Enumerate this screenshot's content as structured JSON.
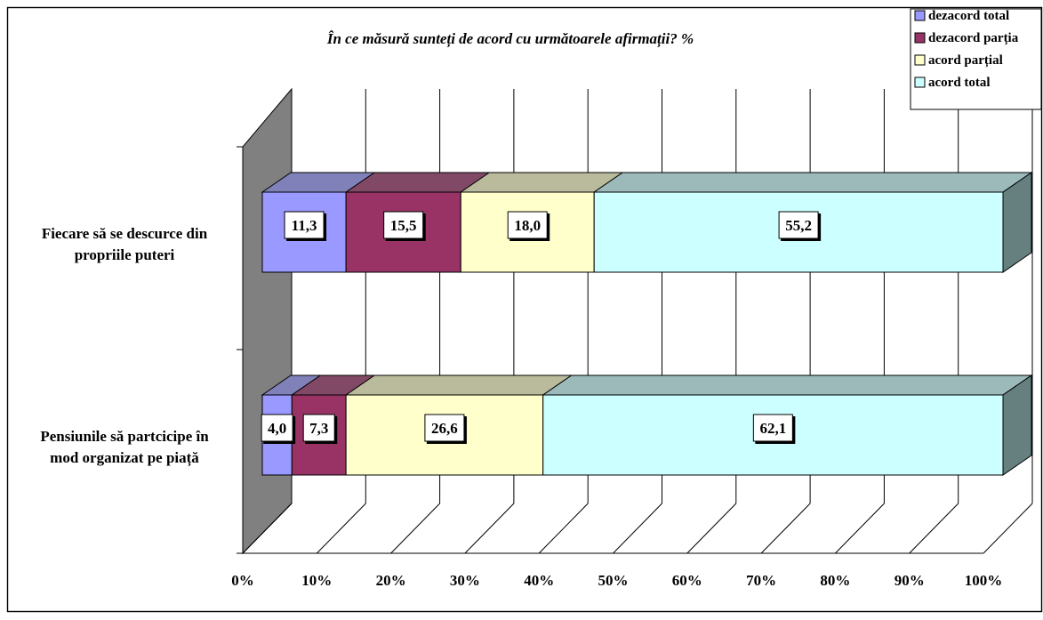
{
  "chart_data": {
    "type": "bar",
    "orientation": "horizontal",
    "stacked": true,
    "percent_stacked": true,
    "three_d": true,
    "title": "În ce măsură sunteți de acord cu următoarele afirmații? %",
    "categories": [
      "Fiecare să se descurce din propriile puteri",
      "Pensiunile să partcicipe în mod organizat pe piață"
    ],
    "series": [
      {
        "name": "dezacord total",
        "color": "#9999ff",
        "values": [
          11.3,
          4.0
        ]
      },
      {
        "name": "dezacord parția",
        "color": "#993366",
        "values": [
          15.5,
          7.3
        ]
      },
      {
        "name": "acord parțial",
        "color": "#ffffcc",
        "values": [
          18.0,
          26.6
        ]
      },
      {
        "name": "acord total",
        "color": "#ccffff",
        "values": [
          55.2,
          62.1
        ]
      }
    ],
    "data_labels": [
      [
        "11,3",
        "15,5",
        "18,0",
        "55,2"
      ],
      [
        "4,0",
        "7,3",
        "26,6",
        "62,1"
      ]
    ],
    "x_ticks": [
      "0%",
      "10%",
      "20%",
      "30%",
      "40%",
      "50%",
      "60%",
      "70%",
      "80%",
      "90%",
      "100%"
    ],
    "xlim": [
      0,
      100
    ],
    "grid": true,
    "legend_position": "top-right"
  }
}
